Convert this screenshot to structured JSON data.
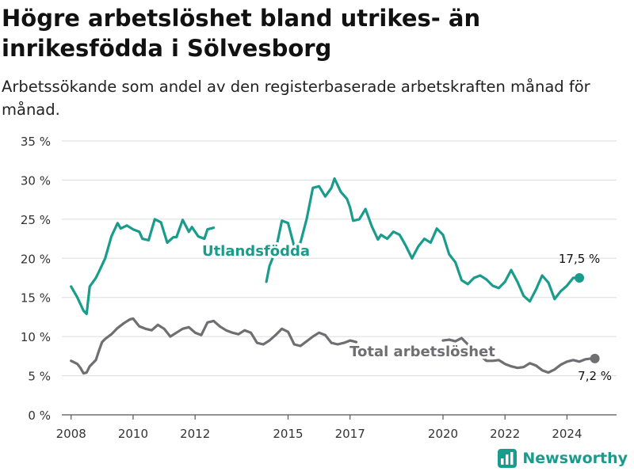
{
  "title": "Högre arbetslöshet bland utrikes- än inrikesfödda i Sölvesborg",
  "subtitle": "Arbetssökande som andel av den registerbaserade arbetskraften månad för månad.",
  "brand": "Newsworthy",
  "colors": {
    "utlandsfodda": "#1a9c8c",
    "total": "#6e6e73",
    "grid": "#dddddd",
    "axis_text": "#333333",
    "brand": "#1a9c8c"
  },
  "chart_data": {
    "type": "line",
    "xlim": [
      2007.7,
      2025.6
    ],
    "ylim": [
      0,
      35
    ],
    "y_ticks": [
      0,
      5,
      10,
      15,
      20,
      25,
      30,
      35
    ],
    "y_tick_labels": [
      "0 %",
      "5 %",
      "10 %",
      "15 %",
      "20 %",
      "25 %",
      "30 %",
      "35 %"
    ],
    "x_ticks": [
      2008,
      2010,
      2012,
      2015,
      2017,
      2020,
      2022,
      2024
    ],
    "x_tick_labels": [
      "2008",
      "2010",
      "2012",
      "2015",
      "2017",
      "2020",
      "2022",
      "2024"
    ],
    "grid": "horizontal",
    "series": [
      {
        "name": "Utlandsfödda",
        "end_label": "17,5 %",
        "x": [
          2008.0,
          2008.2,
          2008.4,
          2008.5,
          2008.6,
          2008.8,
          2008.9,
          2009.1,
          2009.3,
          2009.5,
          2009.6,
          2009.8,
          2010.0,
          2010.2,
          2010.3,
          2010.5,
          2010.7,
          2010.9,
          2011.1,
          2011.3,
          2011.4,
          2011.6,
          2011.8,
          2011.9,
          2012.1,
          2012.3,
          2012.4,
          2012.6,
          2012.7,
          2012.9,
          2013.0,
          null,
          2014.3,
          2014.4,
          2014.6,
          2014.8,
          2015.0,
          2015.2,
          2015.4,
          2015.6,
          2015.8,
          2016.0,
          2016.2,
          2016.4,
          2016.5,
          2016.7,
          2016.9,
          2017.0,
          2017.1,
          2017.3,
          2017.5,
          2017.7,
          2017.9,
          2018.0,
          2018.2,
          2018.4,
          2018.6,
          2018.8,
          2019.0,
          2019.2,
          2019.4,
          2019.6,
          2019.8,
          2020.0,
          2020.2,
          2020.4,
          2020.6,
          2020.8,
          2021.0,
          2021.2,
          2021.4,
          2021.6,
          2021.8,
          2022.0,
          2022.2,
          2022.4,
          2022.6,
          2022.8,
          2023.0,
          2023.2,
          2023.4,
          2023.6,
          2023.8,
          2024.0,
          2024.2,
          2024.4,
          2024.6,
          2024.8,
          2024.9
        ],
        "y": [
          16.4,
          15,
          13.3,
          12.9,
          16.4,
          17.5,
          18.3,
          20,
          22.8,
          24.5,
          23.8,
          24.2,
          23.7,
          23.4,
          22.5,
          22.3,
          25,
          24.6,
          22,
          22.7,
          22.7,
          24.9,
          23.4,
          24,
          22.8,
          22.5,
          23.7,
          23.9,
          null,
          null,
          null,
          null,
          17,
          19,
          21,
          24.8,
          24.5,
          21.5,
          22,
          25,
          29,
          29.2,
          27.9,
          29,
          30.2,
          28.5,
          27.6,
          26.5,
          24.8,
          25,
          26.3,
          24.1,
          22.4,
          23,
          22.5,
          23.4,
          23,
          21.6,
          20,
          21.5,
          22.5,
          22,
          23.8,
          23,
          20.5,
          19.5,
          17.2,
          16.7,
          17.5,
          17.8,
          17.3,
          16.5,
          16.2,
          17,
          18.5,
          17,
          15.2,
          14.5,
          16,
          17.8,
          16.9,
          14.8,
          15.8,
          16.5,
          17.5,
          17.5,
          null,
          null,
          null
        ]
      },
      {
        "name": "Total arbetslöshet",
        "end_label": "7,2 %",
        "x": [
          2008.0,
          2008.2,
          2008.3,
          2008.4,
          2008.5,
          2008.6,
          2008.7,
          2008.8,
          2008.9,
          2009.0,
          2009.1,
          2009.3,
          2009.5,
          2009.7,
          2009.9,
          2010.0,
          2010.2,
          2010.4,
          2010.6,
          2010.8,
          2011.0,
          2011.2,
          2011.4,
          2011.6,
          2011.8,
          2012.0,
          2012.2,
          2012.4,
          2012.6,
          2012.8,
          2013.0,
          2013.2,
          2013.4,
          2013.6,
          2013.8,
          2014.0,
          2014.2,
          2014.4,
          2014.6,
          2014.8,
          2015.0,
          2015.2,
          2015.4,
          2015.6,
          2015.8,
          2016.0,
          2016.2,
          2016.4,
          2016.6,
          2016.8,
          2017.0,
          2017.2,
          null,
          2019.8,
          2020.0,
          2020.2,
          2020.4,
          2020.6,
          2020.8,
          2021.0,
          2021.2,
          2021.4,
          2021.6,
          2021.8,
          2022.0,
          2022.2,
          2022.4,
          2022.6,
          2022.8,
          2023.0,
          2023.2,
          2023.4,
          2023.6,
          2023.8,
          2024.0,
          2024.2,
          2024.4,
          2024.6,
          2024.8,
          2024.9
        ],
        "y": [
          6.9,
          6.5,
          6,
          5.3,
          5.4,
          6.2,
          6.6,
          7,
          8.2,
          9.3,
          9.7,
          10.3,
          11.1,
          11.7,
          12.2,
          12.3,
          11.3,
          11,
          10.8,
          11.5,
          11,
          10,
          10.5,
          11,
          11.2,
          10.5,
          10.2,
          11.8,
          12,
          11.3,
          10.8,
          10.5,
          10.3,
          10.8,
          10.5,
          9.2,
          9,
          9.5,
          10.2,
          11,
          10.6,
          9,
          8.8,
          9.4,
          10,
          10.5,
          10.2,
          9.2,
          9,
          9.2,
          9.5,
          9.3,
          null,
          null,
          9.5,
          9.6,
          9.4,
          9.8,
          9,
          8.6,
          7.6,
          6.9,
          6.9,
          7,
          6.5,
          6.2,
          6,
          6.1,
          6.6,
          6.3,
          5.7,
          5.4,
          5.8,
          6.4,
          6.8,
          7,
          6.8,
          7.1,
          7.2,
          7.2
        ]
      }
    ]
  }
}
